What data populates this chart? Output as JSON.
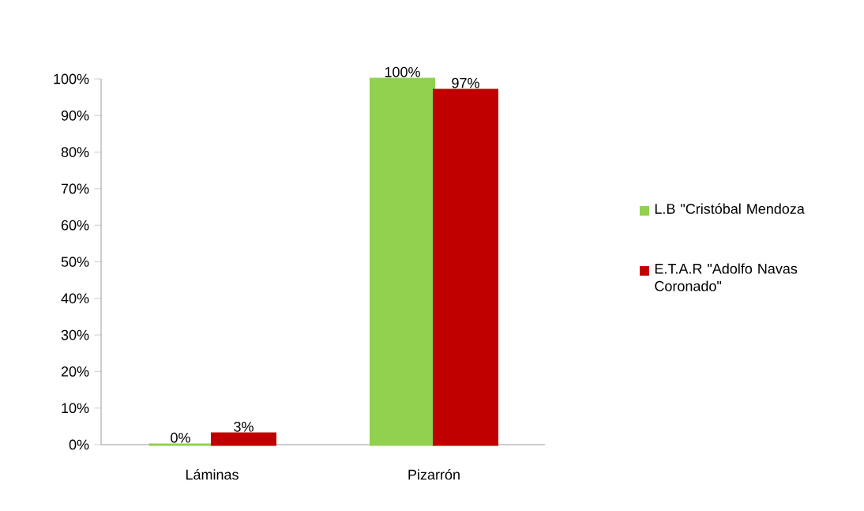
{
  "chart_data": {
    "type": "bar",
    "categories": [
      "Láminas",
      "Pizarrón"
    ],
    "series": [
      {
        "name": "L.B \"Cristóbal Mendoza",
        "color": "#92d050",
        "values": [
          0,
          100
        ],
        "value_labels": [
          "0%",
          "100%"
        ]
      },
      {
        "name": "E.T.A.R \"Adolfo Navas Coronado\"",
        "color": "#c00000",
        "values": [
          3,
          97
        ],
        "value_labels": [
          "3%",
          "97%"
        ]
      }
    ],
    "ylim": [
      0,
      100
    ],
    "yticks": [
      {
        "value": 0,
        "label": "0%"
      },
      {
        "value": 10,
        "label": "10%"
      },
      {
        "value": 20,
        "label": "20%"
      },
      {
        "value": 30,
        "label": "30%"
      },
      {
        "value": 40,
        "label": "40%"
      },
      {
        "value": 50,
        "label": "50%"
      },
      {
        "value": 60,
        "label": "60%"
      },
      {
        "value": 70,
        "label": "70%"
      },
      {
        "value": 80,
        "label": "80%"
      },
      {
        "value": 90,
        "label": "90%"
      },
      {
        "value": 100,
        "label": "100%"
      }
    ],
    "legend": "right"
  }
}
